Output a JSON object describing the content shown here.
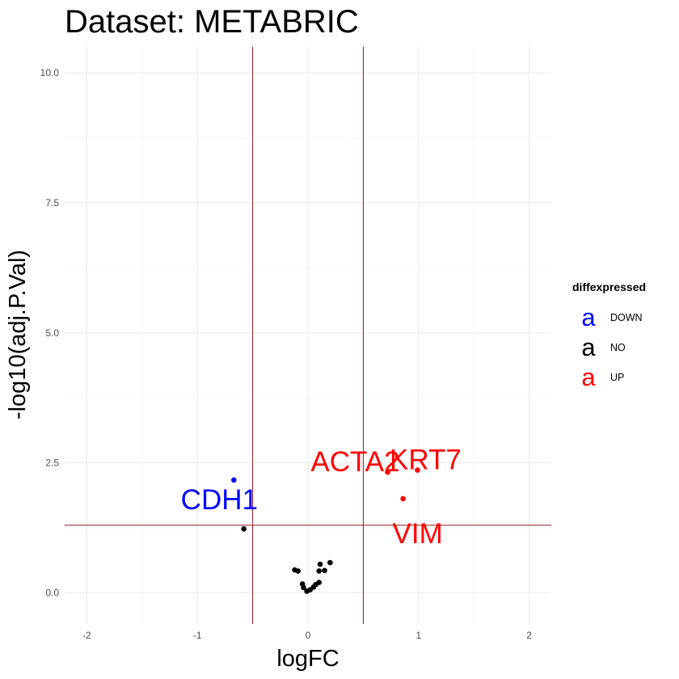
{
  "chart_data": {
    "type": "scatter",
    "title": "Dataset: METABRIC",
    "xlabel": "logFC",
    "ylabel": "-log10(adj.P.Val)",
    "xlim": [
      -2.2,
      2.2
    ],
    "ylim": [
      -0.6,
      10.5
    ],
    "x_ticks": [
      -2,
      -1,
      0,
      1,
      2
    ],
    "x_tick_labels": [
      "-2",
      "-1",
      "0",
      "1",
      "2"
    ],
    "y_ticks": [
      0,
      2.5,
      5,
      7.5,
      10
    ],
    "y_tick_labels": [
      "0.0",
      "2.5",
      "5.0",
      "7.5",
      "10.0"
    ],
    "grid": true,
    "vlines": [
      -0.5,
      0.5
    ],
    "hline": 1.3,
    "reference_line_color": "#8b1a1a",
    "legend": {
      "title": "diffexpressed",
      "key_glyph": "a",
      "placement": "right",
      "entries": [
        {
          "label": "DOWN",
          "color": "#0000ff"
        },
        {
          "label": "NO",
          "color": "#000000"
        },
        {
          "label": "UP",
          "color": "#ff0000"
        }
      ]
    },
    "series": [
      {
        "name": "DOWN",
        "color": "#0000ff",
        "points": [
          {
            "x": -0.67,
            "y": 2.17,
            "label": "CDH1"
          }
        ]
      },
      {
        "name": "NO",
        "color": "#000000",
        "points": [
          {
            "x": -0.58,
            "y": 1.23
          },
          {
            "x": -0.12,
            "y": 0.44
          },
          {
            "x": -0.09,
            "y": 0.42
          },
          {
            "x": -0.05,
            "y": 0.17
          },
          {
            "x": -0.04,
            "y": 0.1
          },
          {
            "x": -0.01,
            "y": 0.03
          },
          {
            "x": 0.02,
            "y": 0.06
          },
          {
            "x": 0.05,
            "y": 0.11
          },
          {
            "x": 0.07,
            "y": 0.16
          },
          {
            "x": 0.1,
            "y": 0.2
          },
          {
            "x": 0.1,
            "y": 0.42
          },
          {
            "x": 0.11,
            "y": 0.55
          },
          {
            "x": 0.15,
            "y": 0.43
          },
          {
            "x": 0.2,
            "y": 0.58
          }
        ]
      },
      {
        "name": "UP",
        "color": "#ff0000",
        "points": [
          {
            "x": 0.72,
            "y": 2.32,
            "label": "ACTA2"
          },
          {
            "x": 0.99,
            "y": 2.36,
            "label": "KRT7"
          },
          {
            "x": 0.86,
            "y": 1.81,
            "label": "VIM"
          }
        ]
      }
    ]
  }
}
